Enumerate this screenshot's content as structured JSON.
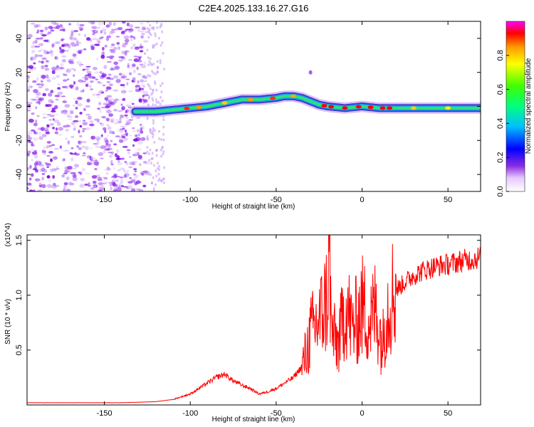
{
  "title": "C2E4.2025.133.16.27.G16",
  "chart_data": [
    {
      "type": "heatmap",
      "xlabel": "Height of straight line (km)",
      "ylabel": "Frequency (Hz)",
      "xlim": [
        -195,
        69
      ],
      "ylim": [
        -50,
        50
      ],
      "xticks": [
        "-150",
        "-100",
        "-50",
        "0",
        "50"
      ],
      "yticks": [
        "-40",
        "-20",
        "0",
        "20",
        "40"
      ],
      "grid": false,
      "colorbar": {
        "label": "Normalized spectral amplitude",
        "range": [
          0,
          1
        ],
        "ticks": [
          "0.0",
          "0.2",
          "0.4",
          "0.6",
          "0.8"
        ]
      },
      "ridge": {
        "x": [
          -132,
          -120,
          -110,
          -100,
          -90,
          -80,
          -70,
          -60,
          -50,
          -45,
          -40,
          -35,
          -30,
          -25,
          -20,
          -10,
          0,
          10,
          20,
          30,
          40,
          50,
          60,
          69
        ],
        "freq": [
          -3,
          -3,
          -2,
          -1,
          0,
          2,
          4,
          4,
          5,
          6,
          6,
          5,
          3,
          1,
          0,
          -1,
          0,
          -1,
          -1,
          -1,
          -1,
          -1,
          -1,
          -1
        ]
      }
    },
    {
      "type": "line",
      "xlabel": "Height of straight line (km)",
      "ylabel": "SNR (10 * v/v)",
      "multiplier": "(x10^4)",
      "xlim": [
        -195,
        69
      ],
      "ylim": [
        0,
        1.55
      ],
      "xticks": [
        "-150",
        "-100",
        "-50",
        "0",
        "50"
      ],
      "yticks": [
        "0.5",
        "1.0",
        "1.5"
      ],
      "grid": false,
      "series": [
        {
          "color": "#ff0000",
          "x": [
            -195,
            -180,
            -160,
            -140,
            -120,
            -110,
            -100,
            -95,
            -90,
            -85,
            -80,
            -75,
            -70,
            -65,
            -60,
            -55,
            -50,
            -45,
            -40,
            -35,
            -32,
            -30,
            -28,
            -26,
            -24,
            -22,
            -20,
            -19,
            -18,
            -16,
            -14,
            -12,
            -10,
            -8,
            -6,
            -4,
            -2,
            0,
            2,
            4,
            6,
            8,
            10,
            12,
            14,
            16,
            18,
            20,
            25,
            30,
            35,
            40,
            45,
            50,
            55,
            60,
            65,
            69
          ],
          "y": [
            0.02,
            0.02,
            0.02,
            0.02,
            0.03,
            0.05,
            0.1,
            0.15,
            0.2,
            0.25,
            0.28,
            0.22,
            0.18,
            0.15,
            0.1,
            0.12,
            0.15,
            0.2,
            0.25,
            0.35,
            0.5,
            0.65,
            0.7,
            0.75,
            0.8,
            0.9,
            1.0,
            1.4,
            0.7,
            0.6,
            0.55,
            0.7,
            0.9,
            0.85,
            0.7,
            0.75,
            0.8,
            0.9,
            0.85,
            0.75,
            0.8,
            0.9,
            0.7,
            0.55,
            0.85,
            0.95,
            1.02,
            1.05,
            1.12,
            1.18,
            1.22,
            1.25,
            1.27,
            1.28,
            1.3,
            1.32,
            1.33,
            1.35
          ]
        }
      ]
    }
  ]
}
